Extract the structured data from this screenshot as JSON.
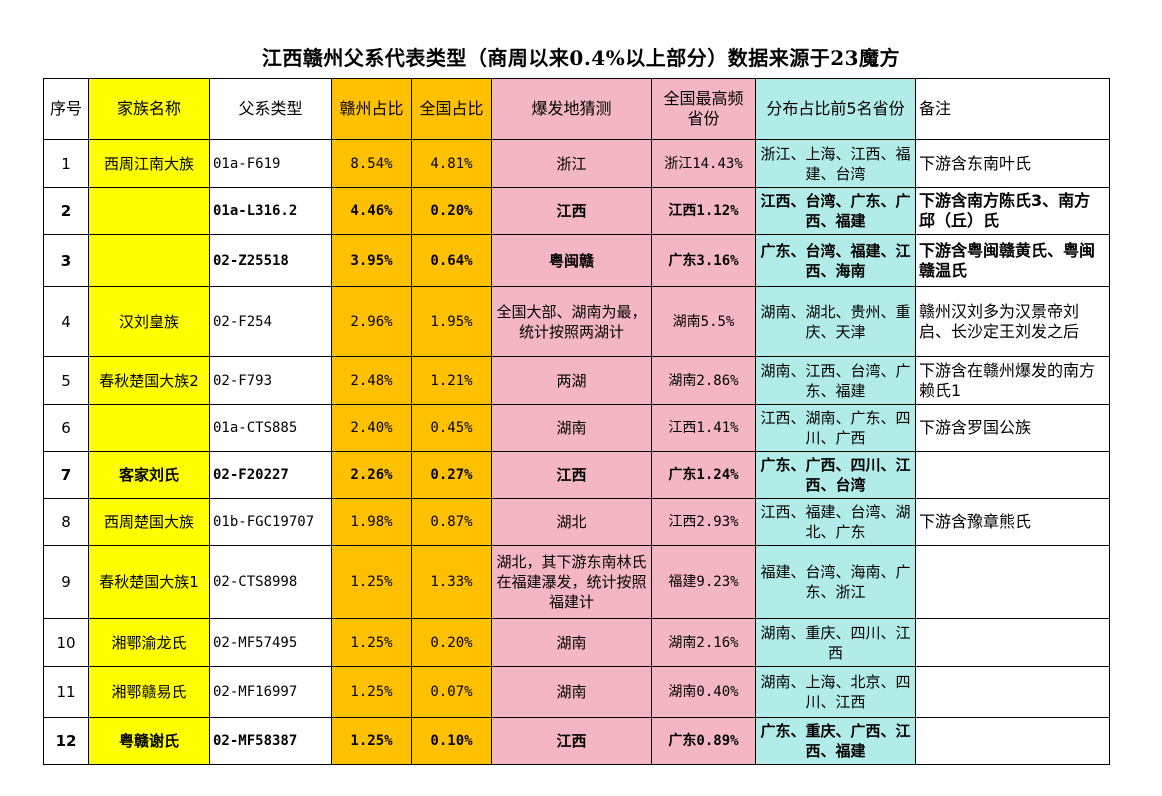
{
  "title": "江西赣州父系代表类型（商周以来0.4%以上部分）数据来源于23魔方",
  "headers": {
    "num": "序号",
    "family": "家族名称",
    "type": "父系类型",
    "ganzhou": "赣州占比",
    "national": "全国占比",
    "origin": "爆发地猜测",
    "max_line1": "全国最高频",
    "max_line2": "省份",
    "dist": "分布占比前5名省份",
    "note": "备注"
  },
  "rows": [
    {
      "num": "1",
      "family": "西周江南大族",
      "type": "01a-F619",
      "ganzhou": "8.54%",
      "national": "4.81%",
      "origin": "浙江",
      "max": "浙江14.43%",
      "dist": "浙江、上海、江西、福建、台湾",
      "note": "下游含东南叶氏",
      "bold": false
    },
    {
      "num": "2",
      "family": "",
      "type": "01a-L316.2",
      "ganzhou": "4.46%",
      "national": "0.20%",
      "origin": "江西",
      "max": "江西1.12%",
      "dist": "江西、台湾、广东、广西、福建",
      "note": "下游含南方陈氏3、南方邱（丘）氏",
      "bold": true
    },
    {
      "num": "3",
      "family": "",
      "type": "02-Z25518",
      "ganzhou": "3.95%",
      "national": "0.64%",
      "origin": "粤闽赣",
      "max": "广东3.16%",
      "dist": "广东、台湾、福建、江西、海南",
      "note": "下游含粤闽赣黄氏、粤闽赣温氏",
      "bold": true
    },
    {
      "num": "4",
      "family": "汉刘皇族",
      "type": "02-F254",
      "ganzhou": "2.96%",
      "national": "1.95%",
      "origin": "全国大部、湖南为最，统计按照两湖计",
      "max": "湖南5.5%",
      "dist": "湖南、湖北、贵州、重庆、天津",
      "note": "赣州汉刘多为汉景帝刘启、长沙定王刘发之后",
      "bold": false
    },
    {
      "num": "5",
      "family": "春秋楚国大族2",
      "type": "02-F793",
      "ganzhou": "2.48%",
      "national": "1.21%",
      "origin": "两湖",
      "max": "湖南2.86%",
      "dist": "湖南、江西、台湾、广东、福建",
      "note": "下游含在赣州爆发的南方赖氏1",
      "bold": false
    },
    {
      "num": "6",
      "family": "",
      "type": "01a-CTS885",
      "ganzhou": "2.40%",
      "national": "0.45%",
      "origin": "湖南",
      "max": "江西1.41%",
      "dist": "江西、湖南、广东、四川、广西",
      "note": "下游含罗国公族",
      "bold": false
    },
    {
      "num": "7",
      "family": "客家刘氏",
      "type": "02-F20227",
      "ganzhou": "2.26%",
      "national": "0.27%",
      "origin": "江西",
      "max": "广东1.24%",
      "dist": "广东、广西、四川、江西、台湾",
      "note": "",
      "bold": true
    },
    {
      "num": "8",
      "family": "西周楚国大族",
      "type": "01b-FGC19707",
      "ganzhou": "1.98%",
      "national": "0.87%",
      "origin": "湖北",
      "max": "江西2.93%",
      "dist": "江西、福建、台湾、湖北、广东",
      "note": "下游含豫章熊氏",
      "bold": false
    },
    {
      "num": "9",
      "family": "春秋楚国大族1",
      "type": "02-CTS8998",
      "ganzhou": "1.25%",
      "national": "1.33%",
      "origin": "湖北，其下游东南林氏在福建瀑发，统计按照福建计",
      "max": "福建9.23%",
      "dist": "福建、台湾、海南、广东、浙江",
      "note": "",
      "bold": false
    },
    {
      "num": "10",
      "family": "湘鄂渝龙氏",
      "type": "02-MF57495",
      "ganzhou": "1.25%",
      "national": "0.20%",
      "origin": "湖南",
      "max": "湖南2.16%",
      "dist": "湖南、重庆、四川、江西",
      "note": "",
      "bold": false
    },
    {
      "num": "11",
      "family": "湘鄂赣易氏",
      "type": "02-MF16997",
      "ganzhou": "1.25%",
      "national": "0.07%",
      "origin": "湖南",
      "max": "湖南0.40%",
      "dist": "湖南、上海、北京、四川、江西",
      "note": "",
      "bold": false
    },
    {
      "num": "12",
      "family": "粤赣谢氏",
      "type": "02-MF58387",
      "ganzhou": "1.25%",
      "national": "0.10%",
      "origin": "江西",
      "max": "广东0.89%",
      "dist": "广东、重庆、广西、江西、福建",
      "note": "",
      "bold": true
    }
  ]
}
